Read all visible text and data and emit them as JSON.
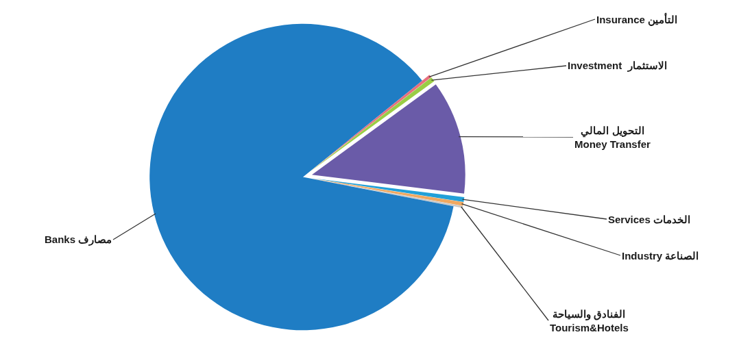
{
  "chart_data": {
    "type": "pie",
    "categories": [
      "Insurance التأمين",
      "Investment  الاستثمار",
      "التحويل المالي\nMoney Transfer",
      "Services الخدمات",
      "Industry الصناعة",
      "الفنادق والسياحة\nTourism&Hotels",
      "Banks مصارف"
    ],
    "values": [
      0.3,
      0.5,
      12,
      0.5,
      0.4,
      0.2,
      86.1
    ],
    "colors": [
      "#e8707e",
      "#9acd45",
      "#6a5ba8",
      "#22a0d8",
      "#f0a860",
      "#c8c8c8",
      "#1f7dc4"
    ],
    "legend": false
  }
}
